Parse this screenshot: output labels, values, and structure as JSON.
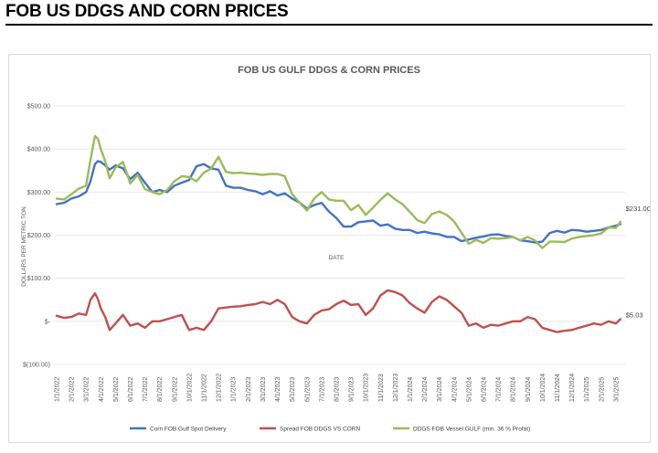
{
  "page": {
    "title": "FOB US DDGS AND CORN PRICES"
  },
  "chart_data": {
    "type": "line",
    "title": "FOB US GULF DDGS & CORN PRICES",
    "xlabel": "DATE",
    "ylabel": "DOLLARS PER METRIC TON",
    "ylim": [
      -100,
      500
    ],
    "yticks": [
      {
        "value": 500,
        "label": "$500.00"
      },
      {
        "value": 400,
        "label": "$400.00"
      },
      {
        "value": 300,
        "label": "$300.00"
      },
      {
        "value": 200,
        "label": "$200.00"
      },
      {
        "value": 100,
        "label": "$100.00"
      },
      {
        "value": 0,
        "label": "$-"
      },
      {
        "value": -100,
        "label": "$(100.00)"
      }
    ],
    "x_ticks": [
      "1/1/2022",
      "2/1/2022",
      "3/1/2022",
      "4/1/2022",
      "5/1/2022",
      "6/1/2022",
      "7/1/2022",
      "8/1/2022",
      "9/1/2022",
      "10/1/2022",
      "11/1/2022",
      "12/1/2022",
      "1/1/2023",
      "2/1/2023",
      "3/1/2023",
      "4/1/2023",
      "5/1/2023",
      "6/1/2023",
      "7/1/2023",
      "8/1/2023",
      "9/1/2023",
      "10/1/2023",
      "11/1/2023",
      "12/1/2023",
      "1/1/2024",
      "2/1/2024",
      "3/1/2024",
      "4/1/2024",
      "5/1/2024",
      "6/1/2024",
      "7/1/2024",
      "8/1/2024",
      "9/1/2024",
      "10/1/2024",
      "11/1/2024",
      "12/1/2024",
      "1/1/2025",
      "2/1/2025",
      "3/1/2025"
    ],
    "x_months": [
      0,
      0.5,
      1,
      1.5,
      2,
      2.3,
      2.6,
      2.8,
      3,
      3.3,
      3.6,
      4,
      4.5,
      5,
      5.5,
      6,
      6.5,
      7,
      7.5,
      8,
      8.5,
      9,
      9.5,
      10,
      10.5,
      11,
      11.5,
      12,
      12.5,
      13,
      13.5,
      14,
      14.5,
      15,
      15.5,
      16,
      16.5,
      17,
      17.5,
      18,
      18.5,
      19,
      19.5,
      20,
      20.5,
      21,
      21.5,
      22,
      22.5,
      23,
      23.5,
      24,
      24.5,
      25,
      25.5,
      26,
      26.5,
      27,
      27.5,
      28,
      28.5,
      29,
      29.5,
      30,
      30.5,
      31,
      31.5,
      32,
      32.5,
      33,
      33.5,
      34,
      34.5,
      35,
      35.5,
      36,
      36.5,
      37,
      37.5,
      38,
      38.3
    ],
    "series": [
      {
        "name": "Corn FOB Gulf Spot Delivery",
        "color": "#4472c4",
        "values": [
          272,
          275,
          285,
          290,
          300,
          325,
          365,
          372,
          370,
          362,
          352,
          362,
          355,
          330,
          345,
          322,
          300,
          305,
          300,
          315,
          322,
          328,
          360,
          365,
          355,
          352,
          315,
          310,
          310,
          305,
          302,
          295,
          302,
          292,
          297,
          285,
          276,
          262,
          270,
          275,
          255,
          240,
          220,
          220,
          230,
          232,
          234,
          222,
          225,
          215,
          212,
          212,
          205,
          208,
          204,
          202,
          196,
          196,
          186,
          190,
          194,
          197,
          201,
          202,
          198,
          196,
          188,
          186,
          183,
          185,
          205,
          210,
          206,
          212,
          211,
          208,
          210,
          212,
          218,
          222,
          226
        ]
      },
      {
        "name": "Spread FOB DDGS VS CORN",
        "color": "#c0504d",
        "values": [
          13,
          8,
          10,
          18,
          15,
          50,
          65,
          52,
          30,
          10,
          -20,
          -5,
          15,
          -10,
          -5,
          -15,
          0,
          0,
          5,
          10,
          15,
          -20,
          -15,
          -20,
          0,
          30,
          32,
          34,
          35,
          38,
          40,
          45,
          40,
          50,
          40,
          10,
          0,
          -5,
          15,
          25,
          28,
          40,
          48,
          38,
          40,
          15,
          30,
          60,
          72,
          68,
          60,
          42,
          30,
          20,
          45,
          58,
          50,
          35,
          20,
          -10,
          -5,
          -15,
          -8,
          -10,
          -5,
          0,
          0,
          10,
          5,
          -15,
          -20,
          -25,
          -22,
          -20,
          -15,
          -10,
          -5,
          -8,
          0,
          -5,
          5
        ]
      },
      {
        "name": "DDGS FOB Vessel GULF  (min. 36 % Profat)",
        "color": "#9bbb59",
        "values": [
          285,
          283,
          295,
          308,
          315,
          375,
          430,
          424,
          400,
          372,
          332,
          357,
          370,
          320,
          340,
          307,
          300,
          295,
          305,
          325,
          337,
          335,
          325,
          345,
          355,
          382,
          347,
          344,
          345,
          343,
          342,
          340,
          342,
          342,
          337,
          295,
          276,
          257,
          285,
          300,
          283,
          280,
          280,
          258,
          270,
          247,
          264,
          282,
          297,
          283,
          272,
          254,
          235,
          228,
          249,
          255,
          247,
          232,
          206,
          180,
          189,
          182,
          193,
          192,
          193,
          196,
          188,
          196,
          188,
          170,
          185,
          185,
          184,
          192,
          196,
          198,
          200,
          204,
          218,
          217,
          231
        ]
      }
    ],
    "annotations": [
      {
        "series": "DDGS FOB Vessel GULF  (min. 36 % Profat)",
        "label": "$231.00"
      },
      {
        "series": "Spread FOB DDGS VS CORN",
        "label": "$5.03"
      }
    ],
    "legend_position": "bottom"
  }
}
